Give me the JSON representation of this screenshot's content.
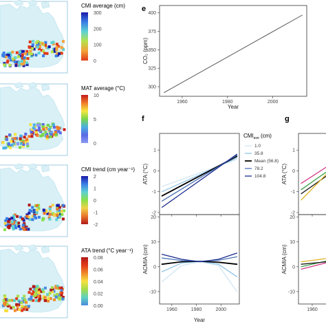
{
  "maps": [
    {
      "legend_title": "CMI average (cm)",
      "ticks": [
        "300",
        "200",
        "100",
        "0"
      ],
      "colors": [
        "#1a1aa8",
        "#3a7ee6",
        "#5fd2d2",
        "#b6e24a",
        "#f2a23a",
        "#e03a1a"
      ]
    },
    {
      "legend_title": "MAT average (°C)",
      "ticks": [
        "10",
        "5",
        "0"
      ],
      "colors": [
        "#c41a1a",
        "#f07a2a",
        "#f6e640",
        "#7ad64a",
        "#4ab0e0",
        "#5a6ae6",
        "#8a9af2"
      ]
    },
    {
      "legend_title": "CMI trend (cm year⁻¹)",
      "ticks": [
        "2",
        "1",
        "0",
        "-1",
        "-2"
      ],
      "colors": [
        "#1a1aa8",
        "#3a7ee6",
        "#5fd2d2",
        "#8ae04a",
        "#f0d24a",
        "#e8762a",
        "#b01a1a"
      ]
    },
    {
      "legend_title": "ATA trend (°C year⁻¹)",
      "ticks": [
        "0.08",
        "0.06",
        "0.04",
        "0.02",
        "0.00"
      ],
      "colors": [
        "#b01a1a",
        "#e23a1a",
        "#f08a2a",
        "#f6e040",
        "#a6dc4a",
        "#5fd2c0",
        "#4a8ae0"
      ]
    }
  ],
  "panels": {
    "e": {
      "letter": "e",
      "xlabel": "Year",
      "ylabel": "CO₂ (ppm)"
    },
    "f": {
      "letter": "f",
      "xlabel": "Year",
      "ylabel_top": "ATA (°C)",
      "ylabel_bottom": "ACMIA (cm)"
    },
    "g": {
      "letter": "g",
      "ylabel_top": "ATA (°C)",
      "ylabel_bottom": "ACMIA (cm)"
    }
  },
  "legend_f": {
    "title": "CMI",
    "title_sub": "ave",
    "title_unit": " (cm)",
    "items": [
      {
        "label": "1.0",
        "color": "#cfe6f4"
      },
      {
        "label": "35.8",
        "color": "#8fc4e6"
      },
      {
        "label": "Mean (56.8)",
        "color": "#000000"
      },
      {
        "label": "78.2",
        "color": "#4a74b8"
      },
      {
        "label": "104.8",
        "color": "#1a2a8c"
      }
    ]
  },
  "chart_data": [
    {
      "id": "e",
      "type": "line",
      "title": "",
      "xlabel": "Year",
      "ylabel": "CO₂ (ppm)",
      "xlim": [
        1950,
        2015
      ],
      "ylim": [
        287,
        410
      ],
      "xticks": [
        1960,
        1980,
        2000
      ],
      "yticks": [
        300,
        325,
        350,
        375,
        400
      ],
      "series": [
        {
          "x": [
            1952,
            2013
          ],
          "y": [
            292,
            397
          ]
        }
      ]
    },
    {
      "id": "f-top",
      "type": "line",
      "title": "",
      "xlabel": "",
      "ylabel": "ATA (°C)",
      "xlim": [
        1950,
        2015
      ],
      "ylim": [
        -2.1,
        1.8
      ],
      "xticks": [
        1960,
        1980,
        2000
      ],
      "yticks": [
        -2,
        -1,
        0,
        1
      ],
      "series": [
        {
          "name": "1.0",
          "x": [
            1952,
            2013
          ],
          "y": [
            -0.75,
            0.55
          ]
        },
        {
          "name": "35.8",
          "x": [
            1952,
            2013
          ],
          "y": [
            -1.0,
            0.62
          ]
        },
        {
          "name": "Mean (56.8)",
          "x": [
            1952,
            2013
          ],
          "y": [
            -1.2,
            0.7
          ]
        },
        {
          "name": "78.2",
          "x": [
            1952,
            2013
          ],
          "y": [
            -1.45,
            0.75
          ]
        },
        {
          "name": "104.8",
          "x": [
            1952,
            2013
          ],
          "y": [
            -1.75,
            0.8
          ]
        }
      ]
    },
    {
      "id": "f-bottom",
      "type": "line",
      "title": "",
      "xlabel": "Year",
      "ylabel": "ACMIA (cm)",
      "xlim": [
        1950,
        2015
      ],
      "ylim": [
        -15,
        21
      ],
      "xticks": [
        1960,
        1980,
        2000
      ],
      "yticks": [
        -10,
        0,
        10,
        20
      ],
      "series": [
        {
          "name": "1.0",
          "x": [
            1952,
            1968,
            1983,
            1998,
            2013
          ],
          "y": [
            -6,
            0.5,
            2,
            0.5,
            -10
          ]
        },
        {
          "name": "35.8",
          "x": [
            1952,
            1968,
            1983,
            1998,
            2013
          ],
          "y": [
            -2,
            1.5,
            2.2,
            1,
            -4
          ]
        },
        {
          "name": "Mean (56.8)",
          "x": [
            1952,
            1968,
            1983,
            1998,
            2013
          ],
          "y": [
            1,
            2,
            2.2,
            1.8,
            1
          ]
        },
        {
          "name": "78.2",
          "x": [
            1952,
            1968,
            1983,
            1998,
            2013
          ],
          "y": [
            3.5,
            2.5,
            2.2,
            2.6,
            4
          ]
        },
        {
          "name": "104.8",
          "x": [
            1952,
            1968,
            1983,
            1998,
            2013
          ],
          "y": [
            5,
            3,
            2,
            3,
            5.5
          ]
        }
      ]
    },
    {
      "id": "g-top",
      "type": "line",
      "title": "",
      "xlabel": "",
      "ylabel": "ATA (°C)",
      "xlim": [
        1950,
        1980
      ],
      "ylim": [
        -2.1,
        1.8
      ],
      "xticks": [
        1960
      ],
      "yticks": [
        -2,
        -1,
        0,
        1
      ],
      "series": [
        {
          "x": [
            1952,
            1980
          ],
          "y": [
            -0.6,
            0.6
          ],
          "color": "#d43a8a"
        },
        {
          "x": [
            1952,
            1980
          ],
          "y": [
            -0.9,
            0.4
          ],
          "color": "#3aa04a"
        },
        {
          "x": [
            1952,
            1980
          ],
          "y": [
            -1.1,
            0.2
          ],
          "color": "#1a1a1a"
        },
        {
          "x": [
            1952,
            1980
          ],
          "y": [
            -1.4,
            0.5
          ],
          "color": "#e0b020"
        }
      ]
    },
    {
      "id": "g-bottom",
      "type": "line",
      "title": "",
      "xlabel": "",
      "ylabel": "ACMIA (cm)",
      "xlim": [
        1950,
        1980
      ],
      "ylim": [
        -15,
        21
      ],
      "xticks": [
        1960
      ],
      "yticks": [
        -10,
        0,
        10,
        20
      ],
      "series": [
        {
          "x": [
            1952,
            1980
          ],
          "y": [
            -1,
            3
          ],
          "color": "#d43a8a"
        },
        {
          "x": [
            1952,
            1980
          ],
          "y": [
            0,
            3.5
          ],
          "color": "#3aa04a"
        },
        {
          "x": [
            1952,
            1980
          ],
          "y": [
            1,
            2.5
          ],
          "color": "#1a1a1a"
        },
        {
          "x": [
            1952,
            1980
          ],
          "y": [
            2,
            4
          ],
          "color": "#e0b020"
        }
      ]
    }
  ]
}
